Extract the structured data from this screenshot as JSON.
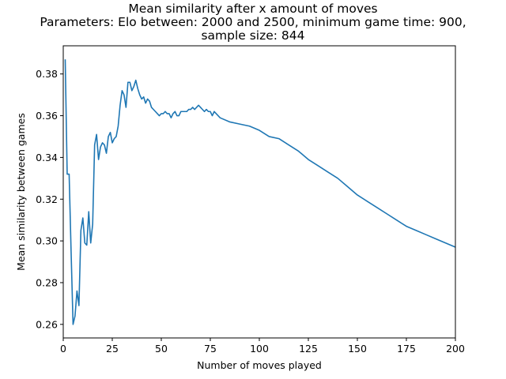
{
  "chart_data": {
    "type": "line",
    "title_lines": [
      "Mean similarity after x amount of moves",
      "Parameters: Elo between: 2000 and 2500, minimum game time: 900,",
      "sample size: 844"
    ],
    "xlabel": "Number of moves played",
    "ylabel": "Mean similarity between games",
    "xlim": [
      0,
      200
    ],
    "ylim": [
      0.2535,
      0.3935
    ],
    "xticks": [
      0,
      25,
      50,
      75,
      100,
      125,
      150,
      175,
      200
    ],
    "yticks": [
      0.26,
      0.28,
      0.3,
      0.32,
      0.34,
      0.36,
      0.38
    ],
    "ytick_labels": [
      "0.26",
      "0.28",
      "0.30",
      "0.32",
      "0.34",
      "0.36",
      "0.38"
    ],
    "grid": false,
    "legend": "none",
    "series": [
      {
        "color": "#1f77b4",
        "x": [
          1,
          2,
          3,
          4,
          5,
          6,
          7,
          8,
          9,
          10,
          11,
          12,
          13,
          14,
          15,
          16,
          17,
          18,
          19,
          20,
          21,
          22,
          23,
          24,
          25,
          26,
          27,
          28,
          29,
          30,
          31,
          32,
          33,
          34,
          35,
          36,
          37,
          38,
          39,
          40,
          41,
          42,
          43,
          44,
          45,
          46,
          47,
          48,
          49,
          50,
          51,
          52,
          53,
          54,
          55,
          56,
          57,
          58,
          59,
          60,
          61,
          62,
          63,
          64,
          65,
          66,
          67,
          68,
          69,
          70,
          71,
          72,
          73,
          74,
          75,
          76,
          77,
          78,
          79,
          80,
          85,
          90,
          95,
          100,
          105,
          110,
          115,
          120,
          125,
          130,
          135,
          140,
          145,
          150,
          155,
          160,
          165,
          170,
          175,
          180,
          185,
          190,
          195,
          200
        ],
        "y": [
          0.387,
          0.332,
          0.332,
          0.295,
          0.26,
          0.264,
          0.276,
          0.269,
          0.305,
          0.311,
          0.299,
          0.298,
          0.314,
          0.299,
          0.308,
          0.346,
          0.351,
          0.339,
          0.345,
          0.347,
          0.346,
          0.342,
          0.35,
          0.352,
          0.347,
          0.349,
          0.35,
          0.355,
          0.365,
          0.372,
          0.37,
          0.364,
          0.376,
          0.376,
          0.372,
          0.374,
          0.377,
          0.373,
          0.37,
          0.368,
          0.369,
          0.366,
          0.368,
          0.367,
          0.364,
          0.363,
          0.362,
          0.361,
          0.36,
          0.361,
          0.361,
          0.362,
          0.361,
          0.361,
          0.359,
          0.361,
          0.362,
          0.36,
          0.36,
          0.362,
          0.362,
          0.362,
          0.362,
          0.363,
          0.363,
          0.364,
          0.363,
          0.364,
          0.365,
          0.364,
          0.363,
          0.362,
          0.363,
          0.362,
          0.362,
          0.36,
          0.362,
          0.361,
          0.36,
          0.359,
          0.357,
          0.356,
          0.355,
          0.353,
          0.35,
          0.349,
          0.346,
          0.343,
          0.339,
          0.336,
          0.333,
          0.33,
          0.326,
          0.322,
          0.319,
          0.316,
          0.313,
          0.31,
          0.307,
          0.305,
          0.303,
          0.301,
          0.299,
          0.297
        ]
      }
    ]
  }
}
